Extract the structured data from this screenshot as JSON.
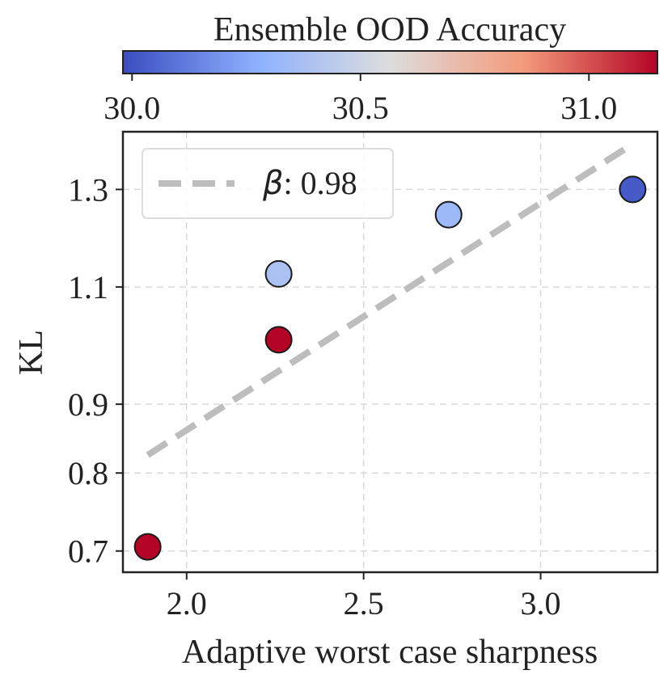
{
  "chart_data": {
    "type": "scatter",
    "xlabel": "Adaptive worst case sharpness",
    "ylabel": "KL",
    "xlim": [
      1.82,
      3.33
    ],
    "ylim": [
      0.675,
      1.435
    ],
    "y_scale": "log",
    "x_ticks": [
      2.0,
      2.5,
      3.0
    ],
    "x_tick_labels": [
      "2.0",
      "2.5",
      "3.0"
    ],
    "y_ticks": [
      0.7,
      0.8,
      0.9,
      1.1,
      1.3
    ],
    "y_tick_labels": [
      "0.7",
      "0.8",
      "0.9",
      "1.1",
      "1.3"
    ],
    "grid": true,
    "points": [
      {
        "x": 1.89,
        "y": 0.705,
        "color_value": 31.15
      },
      {
        "x": 2.26,
        "y": 1.005,
        "color_value": 31.15
      },
      {
        "x": 2.26,
        "y": 1.125,
        "color_value": 30.38
      },
      {
        "x": 2.74,
        "y": 1.245,
        "color_value": 30.33
      },
      {
        "x": 3.26,
        "y": 1.3,
        "color_value": 30.02
      }
    ],
    "fit_line": {
      "label_symbol": "β",
      "label_value": ": 0.98",
      "from": [
        1.89,
        0.825
      ],
      "to": [
        3.26,
        1.405
      ],
      "color": "#bdbdbd",
      "style": "dashed"
    },
    "legend_placement": "upper left",
    "colorbar": {
      "title": "Ensemble OOD Accuracy",
      "range": [
        29.98,
        31.15
      ],
      "ticks": [
        30.0,
        30.5,
        31.0
      ],
      "tick_labels": [
        "30.0",
        "30.5",
        "31.0"
      ],
      "colormap": "coolwarm",
      "colors": [
        "#3b4cc0",
        "#8db0fe",
        "#dddddd",
        "#f49a7b",
        "#b40426"
      ]
    }
  }
}
